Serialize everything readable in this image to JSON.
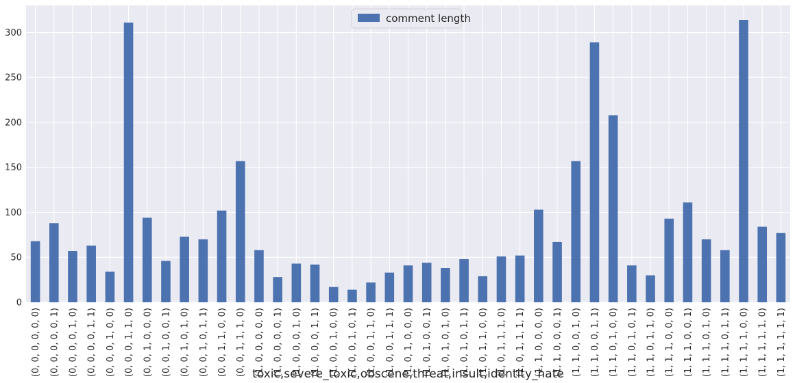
{
  "colors": {
    "bar": "#4c72b0",
    "plot_background": "#eaeaf2",
    "grid": "#ffffff",
    "text": "#262626"
  },
  "chart_data": {
    "type": "bar",
    "xlabel": "toxic,severe_toxic,obscene,threat,insult,identity_hate",
    "ylabel": "",
    "ylim": [
      0,
      330
    ],
    "yticks": [
      0,
      50,
      100,
      150,
      200,
      250,
      300
    ],
    "grid": true,
    "legend_position": "top-center",
    "categories": [
      "(0, 0, 0, 0, 0, 0)",
      "(0, 0, 0, 0, 0, 1)",
      "(0, 0, 0, 0, 1, 0)",
      "(0, 0, 0, 0, 1, 1)",
      "(0, 0, 0, 1, 0, 0)",
      "(0, 0, 0, 1, 1, 0)",
      "(0, 0, 1, 0, 0, 0)",
      "(0, 0, 1, 0, 0, 1)",
      "(0, 0, 1, 0, 1, 0)",
      "(0, 0, 1, 0, 1, 1)",
      "(0, 0, 1, 1, 0, 0)",
      "(0, 0, 1, 1, 1, 0)",
      "(1, 0, 0, 0, 0, 0)",
      "(1, 0, 0, 0, 0, 1)",
      "(1, 0, 0, 0, 1, 0)",
      "(1, 0, 0, 0, 1, 1)",
      "(1, 0, 0, 1, 0, 0)",
      "(1, 0, 0, 1, 0, 1)",
      "(1, 0, 0, 1, 1, 0)",
      "(1, 0, 0, 1, 1, 1)",
      "(1, 0, 1, 0, 0, 0)",
      "(1, 0, 1, 0, 0, 1)",
      "(1, 0, 1, 0, 1, 0)",
      "(1, 0, 1, 0, 1, 1)",
      "(1, 0, 1, 1, 0, 0)",
      "(1, 0, 1, 1, 1, 0)",
      "(1, 0, 1, 1, 1, 1)",
      "(1, 1, 0, 0, 0, 0)",
      "(1, 1, 0, 0, 0, 1)",
      "(1, 1, 0, 0, 1, 0)",
      "(1, 1, 0, 0, 1, 1)",
      "(1, 1, 0, 1, 0, 0)",
      "(1, 1, 0, 1, 0, 1)",
      "(1, 1, 0, 1, 1, 0)",
      "(1, 1, 1, 0, 0, 0)",
      "(1, 1, 1, 0, 0, 1)",
      "(1, 1, 1, 0, 1, 0)",
      "(1, 1, 1, 0, 1, 1)",
      "(1, 1, 1, 1, 0, 0)",
      "(1, 1, 1, 1, 1, 0)",
      "(1, 1, 1, 1, 1, 1)"
    ],
    "series": [
      {
        "name": "comment length",
        "values": [
          68,
          88,
          57,
          63,
          34,
          311,
          94,
          46,
          73,
          70,
          102,
          157,
          58,
          28,
          43,
          42,
          17,
          14,
          22,
          33,
          41,
          44,
          38,
          48,
          29,
          51,
          52,
          103,
          67,
          157,
          289,
          208,
          41,
          30,
          93,
          111,
          70,
          58,
          314,
          84,
          77
        ]
      }
    ]
  }
}
